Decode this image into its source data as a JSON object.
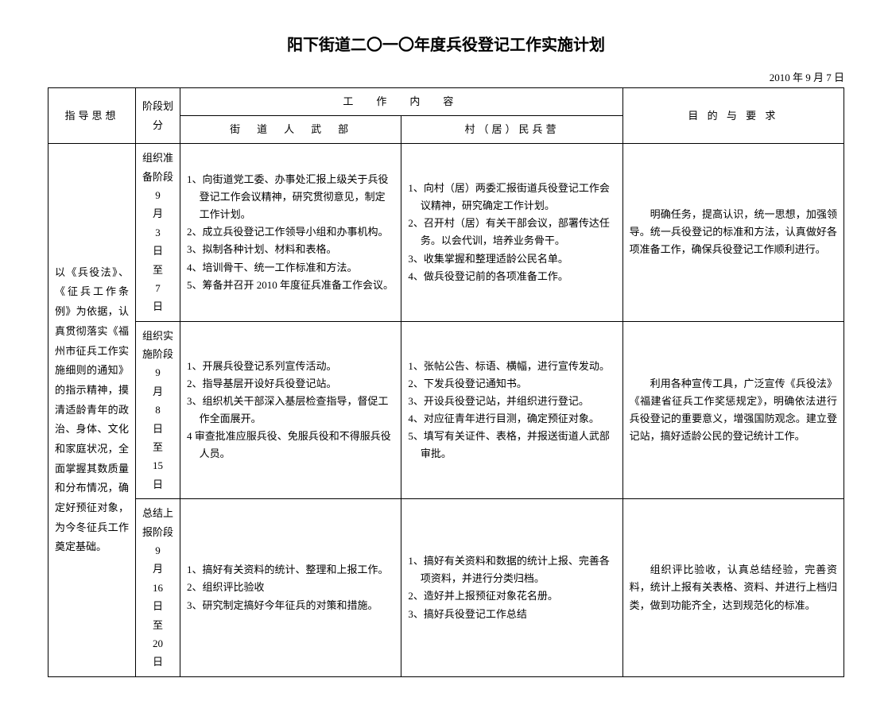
{
  "title": "阳下街道二〇一〇年度兵役登记工作实施计划",
  "date": "2010 年 9 月 7 日",
  "headers": {
    "guide": "指导思想",
    "phase": "阶段划分",
    "work_content": "工　作　内　容",
    "dept1": "街　道　人　武　部",
    "dept2": "村（居）民兵营",
    "requirements": "目 的 与 要 求"
  },
  "guide_text": "以《兵役法》、《征兵工作条例》为依据，认真贯彻落实《福州市征兵工作实施细则的通知》的指示精神，摸清适龄青年的政治、身体、文化和家庭状况，全面掌握其数质量和分布情况，确定好预征对象，为今冬征兵工作奠定基础。",
  "rows": [
    {
      "phase": "组织准备阶段 9 月 3 日 至 7 日",
      "dept1": [
        "1、向街道党工委、办事处汇报上级关于兵役登记工作会议精神，研究贯彻意见，制定工作计划。",
        "2、成立兵役登记工作领导小组和办事机构。",
        "3、拟制各种计划、材料和表格。",
        "4、培训骨干、统一工作标准和方法。",
        "5、筹备并召开 2010 年度征兵准备工作会议。"
      ],
      "dept2": [
        "1、向村（居）两委汇报街道兵役登记工作会议精神，研究确定工作计划。",
        "2、召开村（居）有关干部会议，部署传达任务。以会代训，培养业务骨干。",
        "3、收集掌握和整理适龄公民名单。",
        "4、做兵役登记前的各项准备工作。"
      ],
      "req": "明确任务，提高认识，统一思想，加强领导。统一兵役登记的标准和方法，认真做好各项准备工作，确保兵役登记工作顺利进行。"
    },
    {
      "phase": "组织实施阶段 9 月 8 日 至 15 日",
      "dept1": [
        "1、开展兵役登记系列宣传活动。",
        "2、指导基层开设好兵役登记站。",
        "3、组织机关干部深入基层检查指导，督促工作全面展开。",
        "4 审查批准应服兵役、免服兵役和不得服兵役人员。"
      ],
      "dept2": [
        "1、张帖公告、标语、横幅，进行宣传发动。",
        "2、下发兵役登记通知书。",
        "3、开设兵役登记站，并组织进行登记。",
        "4、对应征青年进行目测，确定预征对象。",
        "5、填写有关证件、表格，并报送街道人武部审批。"
      ],
      "req": "利用各种宣传工具，广泛宣传《兵役法》《福建省征兵工作奖惩规定》，明确依法进行兵役登记的重要意义，增强国防观念。建立登记站，搞好适龄公民的登记统计工作。"
    },
    {
      "phase": "总结上报阶段 9 月 16 日 至 20 日",
      "dept1": [
        "1、搞好有关资料的统计、整理和上报工作。",
        "2、组织评比验收",
        "3、研究制定搞好今年征兵的对策和措施。"
      ],
      "dept2": [
        "1、搞好有关资料和数据的统计上报、完善各项资料，并进行分类归档。",
        "2、造好并上报预征对象花名册。",
        "3、搞好兵役登记工作总结"
      ],
      "req": "组织评比验收，认真总结经验，完善资料，统计上报有关表格、资料、并进行上档归类，做到功能齐全，达到规范化的标准。"
    }
  ]
}
